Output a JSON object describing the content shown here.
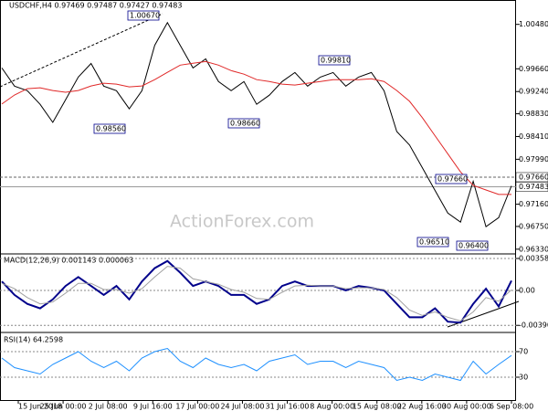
{
  "header": "USDCHF,H4  0.97469 0.97487 0.97427 0.97483",
  "watermark": "ActionForex.com",
  "annotations": [
    "1.00670",
    "0.98560",
    "0.98660",
    "0.99810",
    "0.97660",
    "0.96510",
    "0.96400"
  ],
  "xtick_labels": [
    "15 Jun 2018",
    "25 Jun 00:00",
    "2 Jul 08:00",
    "9 Jul 16:00",
    "17 Jul 00:00",
    "24 Jul 08:00",
    "31 Jul 16:00",
    "8 Aug 00:00",
    "15 Aug 08:00",
    "22 Aug 16:00",
    "30 Aug 00:00",
    "6 Sep 08:00"
  ],
  "chart_data": [
    {
      "type": "line",
      "title": "USDCHF,H4",
      "ylim": [
        0.9626,
        1.0093
      ],
      "yticks": [
        {
          "value": 1.0048,
          "label": "1.00480"
        },
        {
          "value": 0.9966,
          "label": "0.99660"
        },
        {
          "value": 0.9924,
          "label": "0.99240"
        },
        {
          "value": 0.9883,
          "label": "0.98830"
        },
        {
          "value": 0.9841,
          "label": "0.98410"
        },
        {
          "value": 0.9799,
          "label": "0.97990"
        },
        {
          "value": 0.9716,
          "label": "0.97160"
        },
        {
          "value": 0.9675,
          "label": "0.96750"
        },
        {
          "value": 0.9633,
          "label": "0.96330"
        }
      ],
      "price_levels": [
        {
          "value": 0.9766,
          "label": "0.97660"
        },
        {
          "value": 0.97483,
          "label": "0.97483"
        }
      ],
      "series": [
        {
          "color": "#000000",
          "values": [
            0.99675,
            0.9934,
            0.99256,
            0.99005,
            0.98671,
            0.99089,
            0.99507,
            0.99758,
            0.9934,
            0.99256,
            0.98922,
            0.99256,
            1.00093,
            1.00512,
            1.00093,
            0.99675,
            0.99842,
            0.99424,
            0.99256,
            0.99424,
            0.99005,
            0.99173,
            0.99424,
            0.99591,
            0.9934,
            0.99507,
            0.99591,
            0.9934,
            0.99507,
            0.99591,
            0.99256,
            0.98503,
            0.98252,
            0.97834,
            0.97415,
            0.96997,
            0.9683,
            0.97583,
            0.96746,
            0.96913,
            0.97499
          ]
        },
        {
          "color": "#e02828",
          "values": [
            0.9901,
            0.99177,
            0.99293,
            0.9931,
            0.9926,
            0.99227,
            0.9926,
            0.99344,
            0.99394,
            0.99377,
            0.99327,
            0.99344,
            0.9946,
            0.99594,
            0.99728,
            0.99761,
            0.99794,
            0.99728,
            0.99627,
            0.99561,
            0.9946,
            0.99427,
            0.99377,
            0.9936,
            0.99394,
            0.99427,
            0.9946,
            0.9946,
            0.9946,
            0.99477,
            0.99427,
            0.9926,
            0.9906,
            0.98759,
            0.98425,
            0.98091,
            0.97757,
            0.97507,
            0.97423,
            0.9734,
            0.9734
          ]
        }
      ]
    },
    {
      "type": "line",
      "title": "MACD(12,26,9) 0.001143 0.000063",
      "ylim": [
        -0.0046,
        0.00399
      ],
      "yticks": [
        {
          "value": 0.00358,
          "label": "0.00358"
        },
        {
          "value": 0,
          "label": "0.00"
        },
        {
          "value": -0.003908,
          "label": "-0.003908"
        }
      ],
      "series": [
        {
          "color": "#00008b",
          "values": [
            0.001,
            -0.0005,
            -0.0015,
            -0.002,
            -0.001,
            0.0005,
            0.0015,
            0.0005,
            -0.0005,
            0.0005,
            -0.001,
            0.001,
            0.0025,
            0.0033,
            0.002,
            0.0005,
            0.001,
            0.0005,
            -0.0005,
            -0.0005,
            -0.0015,
            -0.001,
            0.0005,
            0.001,
            0.0005,
            0.0005,
            0.0005,
            0,
            0.0005,
            0.0003,
            0,
            -0.0015,
            -0.003,
            -0.003,
            -0.002,
            -0.0035,
            -0.0036,
            -0.0015,
            0.0002,
            -0.0018,
            0.0011
          ]
        },
        {
          "color": "#a0a0a0",
          "values": [
            0.0008,
            0.0002,
            -0.0008,
            -0.0015,
            -0.0013,
            -0.0003,
            0.0008,
            0.0008,
            0.0001,
            0.0001,
            -0.0003,
            0.0002,
            0.0015,
            0.0027,
            0.0025,
            0.0013,
            0.001,
            0.0007,
            0.0001,
            -0.0002,
            -0.0009,
            -0.001,
            -0.0002,
            0.0005,
            0.0006,
            0.0005,
            0.0005,
            0.0002,
            0.0003,
            0.0003,
            0.0001,
            -0.0008,
            -0.0022,
            -0.0028,
            -0.0024,
            -0.003,
            -0.0034,
            -0.0024,
            -0.0008,
            -0.0012,
            6e-05
          ]
        }
      ]
    },
    {
      "type": "line",
      "title": "RSI(14) 64.2598",
      "ylim": [
        5.7,
        98.6
      ],
      "yticks": [
        70,
        30
      ],
      "series": [
        {
          "color": "#1e90ff",
          "values": [
            60,
            45,
            40,
            35,
            50,
            60,
            70,
            55,
            45,
            55,
            40,
            60,
            70,
            75,
            55,
            45,
            60,
            50,
            45,
            50,
            40,
            55,
            60,
            65,
            50,
            55,
            55,
            45,
            55,
            50,
            45,
            25,
            30,
            25,
            35,
            30,
            25,
            55,
            35,
            50,
            64
          ]
        }
      ]
    }
  ]
}
